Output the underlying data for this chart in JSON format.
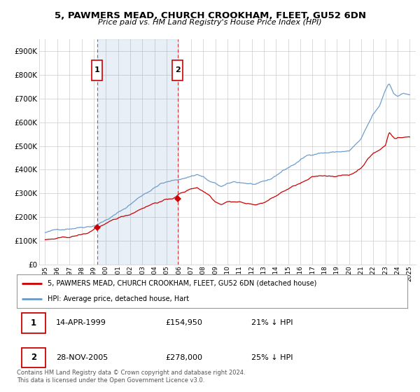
{
  "title1": "5, PAWMERS MEAD, CHURCH CROOKHAM, FLEET, GU52 6DN",
  "title2": "Price paid vs. HM Land Registry's House Price Index (HPI)",
  "legend_line1": "5, PAWMERS MEAD, CHURCH CROOKHAM, FLEET, GU52 6DN (detached house)",
  "legend_line2": "HPI: Average price, detached house, Hart",
  "annotation1_label": "1",
  "annotation1_date": "14-APR-1999",
  "annotation1_price": "£154,950",
  "annotation1_hpi": "21% ↓ HPI",
  "annotation2_label": "2",
  "annotation2_date": "28-NOV-2005",
  "annotation2_price": "£278,000",
  "annotation2_hpi": "25% ↓ HPI",
  "footnote": "Contains HM Land Registry data © Crown copyright and database right 2024.\nThis data is licensed under the Open Government Licence v3.0.",
  "red_color": "#cc0000",
  "blue_color": "#6699cc",
  "blue_fill_color": "#ddeeff",
  "background_color": "#ffffff",
  "grid_color": "#cccccc",
  "annotation_box_color": "#cc0000",
  "ylim": [
    0,
    950000
  ],
  "yticks": [
    0,
    100000,
    200000,
    300000,
    400000,
    500000,
    600000,
    700000,
    800000,
    900000
  ],
  "ytick_labels": [
    "£0",
    "£100K",
    "£200K",
    "£300K",
    "£400K",
    "£500K",
    "£600K",
    "£700K",
    "£800K",
    "£900K"
  ],
  "purchase1_x": 1999.29,
  "purchase1_y": 154950,
  "purchase2_x": 2005.91,
  "purchase2_y": 278000,
  "xlim": [
    1994.5,
    2025.5
  ],
  "xticks": [
    1995,
    1996,
    1997,
    1998,
    1999,
    2000,
    2001,
    2002,
    2003,
    2004,
    2005,
    2006,
    2007,
    2008,
    2009,
    2010,
    2011,
    2012,
    2013,
    2014,
    2015,
    2016,
    2017,
    2018,
    2019,
    2020,
    2021,
    2022,
    2023,
    2024,
    2025
  ]
}
